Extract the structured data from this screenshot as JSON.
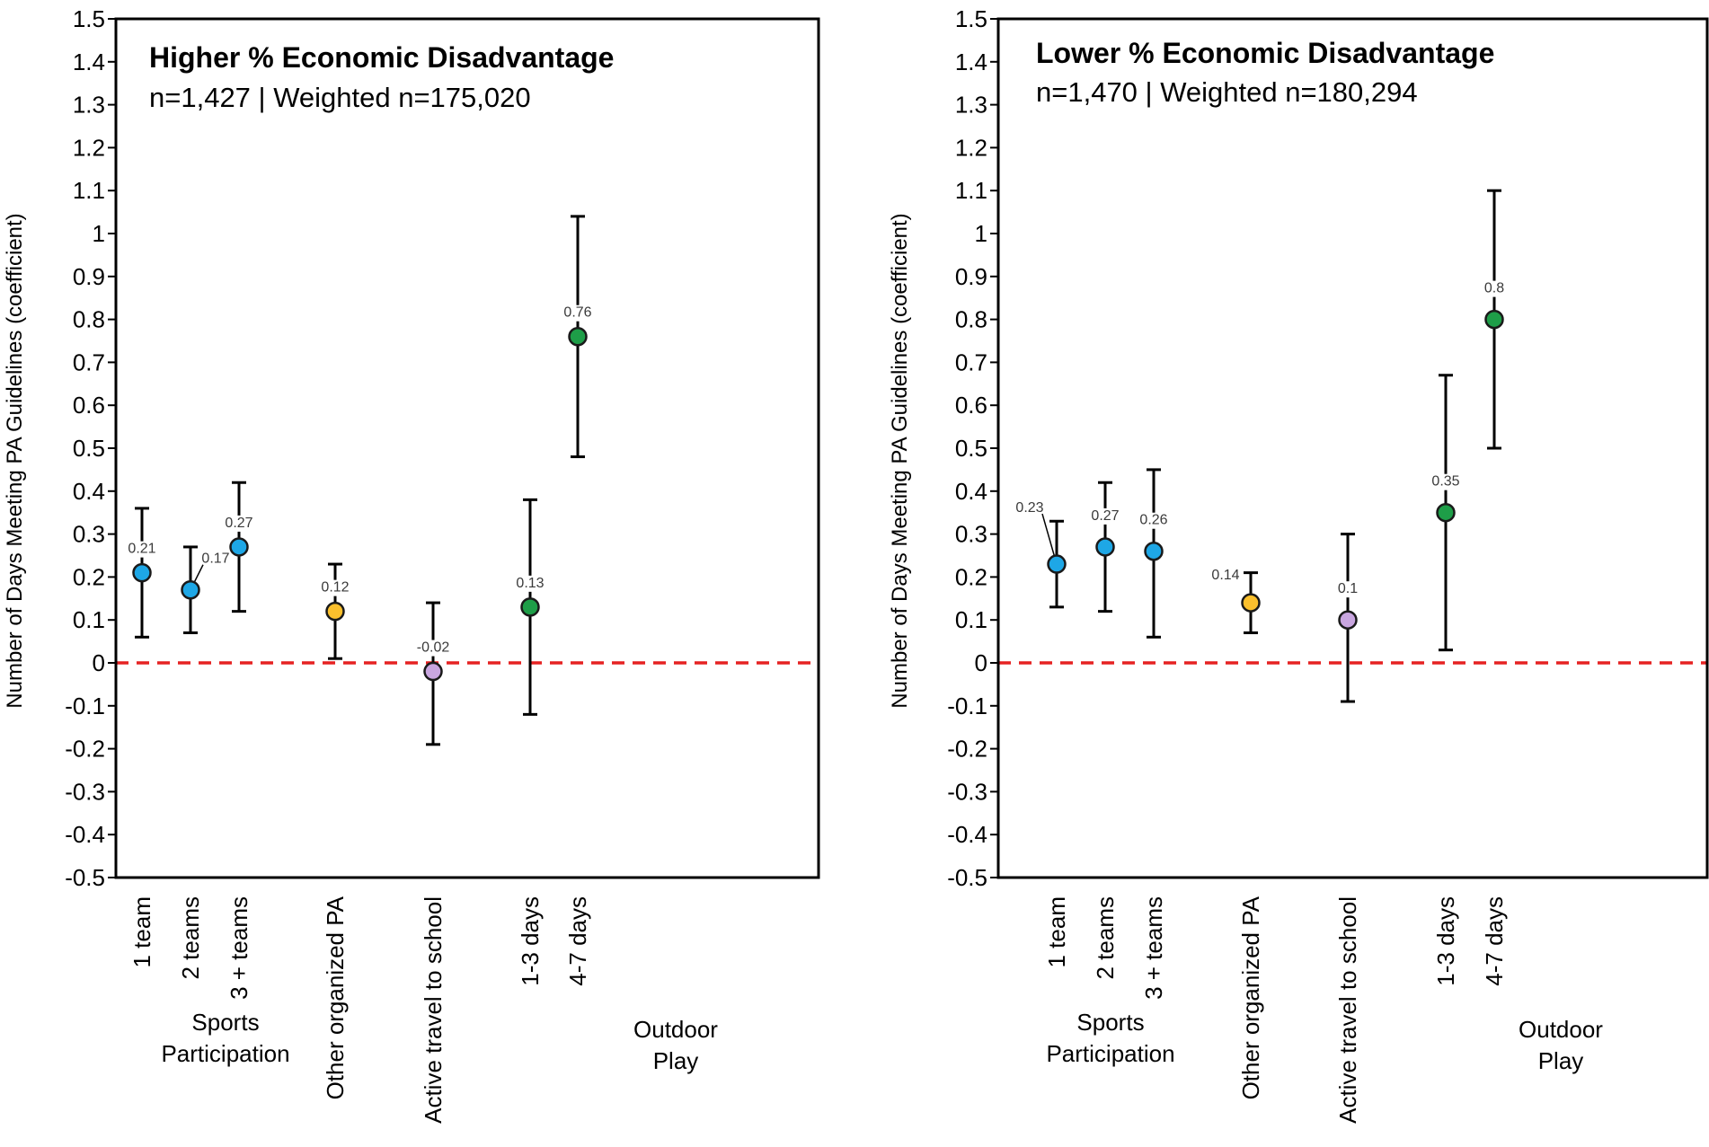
{
  "chart_data": [
    {
      "type": "scatter",
      "title": "Higher % Economic Disadvantage",
      "subtitle": "n=1,427 | Weighted n=175,020",
      "ylabel": "Number of Days Meeting PA Guidelines (coefficient)",
      "ylim": [
        -0.5,
        1.5
      ],
      "yticks": [
        "-0.5",
        "-0.4",
        "-0.3",
        "-0.2",
        "-0.1",
        "0",
        "0.1",
        "0.2",
        "0.3",
        "0.4",
        "0.5",
        "0.6",
        "0.7",
        "0.8",
        "0.9",
        "1",
        "1.1",
        "1.2",
        "1.3",
        "1.4",
        "1.5"
      ],
      "reference_line": 0,
      "points": [
        {
          "label": "1 team",
          "value": 0.21,
          "ci": [
            0.06,
            0.36
          ],
          "value_label": "0.21",
          "group": "sports",
          "color": "#1ea7e6"
        },
        {
          "label": "2 teams",
          "value": 0.17,
          "ci": [
            0.07,
            0.27
          ],
          "value_label": "0.17",
          "group": "sports",
          "color": "#1ea7e6"
        },
        {
          "label": "3 + teams",
          "value": 0.27,
          "ci": [
            0.12,
            0.42
          ],
          "value_label": "0.27",
          "group": "sports",
          "color": "#1ea7e6"
        },
        {
          "label": "Other organized PA",
          "value": 0.12,
          "ci": [
            0.01,
            0.23
          ],
          "value_label": "0.12",
          "group": "other",
          "color": "#fbc02d"
        },
        {
          "label": "Active travel to school",
          "value": -0.02,
          "ci": [
            -0.19,
            0.14
          ],
          "value_label": "-0.02",
          "group": "travel",
          "color": "#c9a6e0"
        },
        {
          "label": "1-3 days",
          "value": 0.13,
          "ci": [
            -0.12,
            0.38
          ],
          "value_label": "0.13",
          "group": "outdoor",
          "color": "#1e9e48"
        },
        {
          "label": "4-7 days",
          "value": 0.76,
          "ci": [
            0.48,
            1.04
          ],
          "value_label": "0.76",
          "group": "outdoor",
          "color": "#1e9e48"
        }
      ],
      "group_labels": [
        {
          "line1": "Sports",
          "line2": "Participation"
        },
        {
          "line1": "Outdoor",
          "line2": "Play"
        }
      ]
    },
    {
      "type": "scatter",
      "title": "Lower % Economic Disadvantage",
      "subtitle": "n=1,470 | Weighted n=180,294",
      "ylabel": "Number of Days Meeting PA Guidelines (coefficient)",
      "ylim": [
        -0.5,
        1.5
      ],
      "yticks": [
        "-0.5",
        "-0.4",
        "-0.3",
        "-0.2",
        "-0.1",
        "0",
        "0.1",
        "0.2",
        "0.3",
        "0.4",
        "0.5",
        "0.6",
        "0.7",
        "0.8",
        "0.9",
        "1",
        "1.1",
        "1.2",
        "1.3",
        "1.4",
        "1.5"
      ],
      "reference_line": 0,
      "points": [
        {
          "label": "1 team",
          "value": 0.23,
          "ci": [
            0.13,
            0.33
          ],
          "value_label": "0.23",
          "group": "sports",
          "color": "#1ea7e6"
        },
        {
          "label": "2 teams",
          "value": 0.27,
          "ci": [
            0.12,
            0.42
          ],
          "value_label": "0.27",
          "group": "sports",
          "color": "#1ea7e6"
        },
        {
          "label": "3 + teams",
          "value": 0.26,
          "ci": [
            0.06,
            0.45
          ],
          "value_label": "0.26",
          "group": "sports",
          "color": "#1ea7e6"
        },
        {
          "label": "Other organized PA",
          "value": 0.14,
          "ci": [
            0.07,
            0.21
          ],
          "value_label": "0.14",
          "group": "other",
          "color": "#fbc02d"
        },
        {
          "label": "Active travel to school",
          "value": 0.1,
          "ci": [
            -0.09,
            0.3
          ],
          "value_label": "0.1",
          "group": "travel",
          "color": "#c9a6e0"
        },
        {
          "label": "1-3 days",
          "value": 0.35,
          "ci": [
            0.03,
            0.67
          ],
          "value_label": "0.35",
          "group": "outdoor",
          "color": "#1e9e48"
        },
        {
          "label": "4-7 days",
          "value": 0.8,
          "ci": [
            0.5,
            1.1
          ],
          "value_label": "0.8",
          "group": "outdoor",
          "color": "#1e9e48"
        }
      ],
      "group_labels": [
        {
          "line1": "Sports",
          "line2": "Participation"
        },
        {
          "line1": "Outdoor",
          "line2": "Play"
        }
      ]
    }
  ],
  "colors": {
    "axis": "#000000",
    "reference_line": "#e52222",
    "value_label": "#3a3a3a"
  }
}
